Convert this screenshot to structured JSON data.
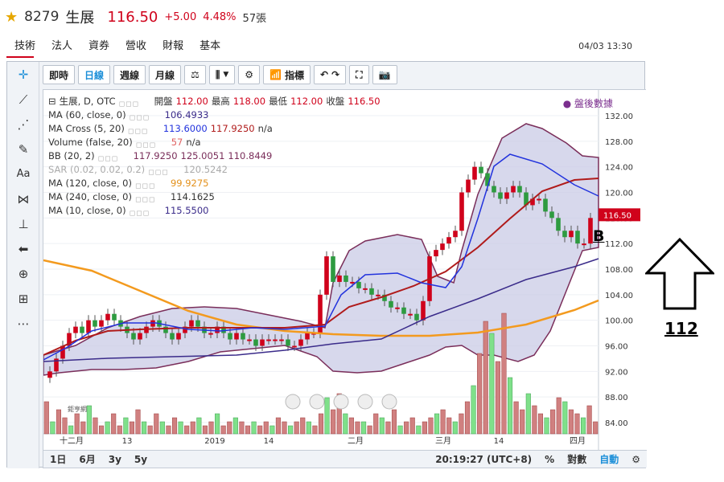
{
  "header": {
    "code": "8279",
    "name": "生展",
    "price": "116.50",
    "change": "+5.00",
    "change_pct": "4.48%",
    "volume": "57張"
  },
  "tabs": [
    "技術",
    "法人",
    "資券",
    "營收",
    "財報",
    "基本"
  ],
  "datetime": "04/03 13:30",
  "toolbar": {
    "intraday": "即時",
    "daily": "日線",
    "weekly": "週線",
    "monthly": "月線",
    "indicators": "指標"
  },
  "legend": {
    "main": "生展, D, OTC",
    "open_label": "開盤",
    "open": "112.00",
    "high_label": "最高",
    "high": "118.00",
    "low_label": "最低",
    "low": "112.00",
    "close_label": "收盤",
    "close": "116.50",
    "ma60_label": "MA (60, close, 0)",
    "ma60": "106.4933",
    "macross_label": "MA Cross (5, 20)",
    "macross_a": "113.6000",
    "macross_b": "117.9250",
    "macross_c": "n/a",
    "volume_label": "Volume (false, 20)",
    "volume_a": "57",
    "volume_b": "n/a",
    "bb_label": "BB (20, 2)",
    "bb_a": "117.9250",
    "bb_b": "125.0051",
    "bb_c": "110.8449",
    "sar_label": "SAR (0.02, 0.02, 0.2)",
    "sar": "120.5242",
    "ma120_label": "MA (120, close, 0)",
    "ma120": "99.9275",
    "ma240_label": "MA (240, close, 0)",
    "ma240": "114.1625",
    "ma10_label": "MA (10, close, 0)",
    "ma10": "115.5500"
  },
  "after_hours": "盤後數據",
  "current_price_tag": "116.50",
  "y_ticks": [
    "132.00",
    "128.00",
    "124.00",
    "120.00",
    "116.00",
    "112.00",
    "108.00",
    "104.00",
    "100.00",
    "96.00",
    "92.00",
    "88.00",
    "84.00"
  ],
  "x_ticks": [
    "十二月",
    "13",
    "2019",
    "14",
    "二月",
    "三月",
    "14",
    "四月"
  ],
  "bottombar": {
    "r1": "1日",
    "r2": "6月",
    "r3": "3y",
    "r4": "5y",
    "time": "20:19:27 (UTC+8)",
    "pct": "%",
    "log": "對數",
    "auto": "自動"
  },
  "annotations": {
    "b_label": "B",
    "arrow_value": "112"
  },
  "watermark": "鉅亨網",
  "colors": {
    "up": "#d0021b",
    "down": "#2e9b40",
    "bb_fill": "#c9cbe6",
    "ma_blue": "#2233dd",
    "ma_red": "#b01b1b",
    "ma_orange": "#f39a1e",
    "ma_purple": "#3a2b8a"
  }
}
